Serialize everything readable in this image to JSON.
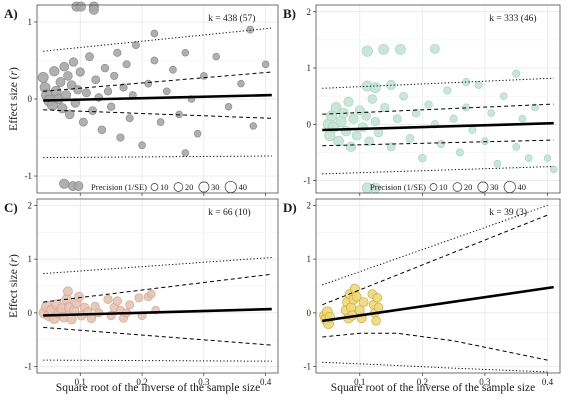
{
  "colors": {
    "A": {
      "fill": "#a7a7a7",
      "stroke": "#8b8b8b"
    },
    "B": {
      "fill": "#c2e4d7",
      "stroke": "#a9d4c4"
    },
    "C": {
      "fill": "#e6c3b3",
      "stroke": "#d2a794"
    },
    "D": {
      "fill": "#efd878",
      "stroke": "#c9ad3e"
    },
    "panel_bg": "#ffffff",
    "grid": "#e4e4e4",
    "frame": "#4d4d4d",
    "fit_line": "#000000"
  },
  "shared_xlabel": "Square root of the inverse of the sample size",
  "chart_data": [
    {
      "panel": "A)",
      "type": "scatter",
      "ylabel": "Effect size (r)",
      "k_label": "k = 438 (57)",
      "xlim": [
        0.03,
        0.42
      ],
      "ylim": [
        -1.22,
        1.22
      ],
      "x_ticks": [
        0.1,
        0.2,
        0.3,
        0.4
      ],
      "y_ticks": [
        -1,
        0,
        1
      ],
      "show_x_tick_labels": false,
      "legend": {
        "title": "Precision (1/SE)",
        "sizes": [
          10,
          20,
          30,
          40
        ]
      },
      "fit": {
        "x": [
          0.04,
          0.41
        ],
        "y": [
          -0.02,
          0.05
        ]
      },
      "ci_upper": {
        "x": [
          0.04,
          0.41
        ],
        "y": [
          0.1,
          0.35
        ]
      },
      "ci_lower": {
        "x": [
          0.04,
          0.41
        ],
        "y": [
          -0.14,
          -0.25
        ]
      },
      "pi_upper": {
        "x": [
          0.04,
          0.41
        ],
        "y": [
          0.62,
          0.92
        ]
      },
      "pi_lower": {
        "x": [
          0.04,
          0.41
        ],
        "y": [
          -0.76,
          -0.74
        ]
      },
      "points": [
        {
          "x": 0.04,
          "y": 0.28,
          "s": 30
        },
        {
          "x": 0.043,
          "y": 0.15,
          "s": 28
        },
        {
          "x": 0.046,
          "y": 0.05,
          "s": 35
        },
        {
          "x": 0.05,
          "y": -0.02,
          "s": 38
        },
        {
          "x": 0.055,
          "y": -0.08,
          "s": 30
        },
        {
          "x": 0.058,
          "y": 0.36,
          "s": 25
        },
        {
          "x": 0.061,
          "y": 0.1,
          "s": 28
        },
        {
          "x": 0.065,
          "y": 0.0,
          "s": 26
        },
        {
          "x": 0.068,
          "y": 0.22,
          "s": 22
        },
        {
          "x": 0.071,
          "y": -0.12,
          "s": 24
        },
        {
          "x": 0.074,
          "y": 0.42,
          "s": 20
        },
        {
          "x": 0.077,
          "y": 0.05,
          "s": 24
        },
        {
          "x": 0.08,
          "y": 0.3,
          "s": 20
        },
        {
          "x": 0.083,
          "y": -0.2,
          "s": 20
        },
        {
          "x": 0.086,
          "y": 0.18,
          "s": 20
        },
        {
          "x": 0.089,
          "y": 0.48,
          "s": 18
        },
        {
          "x": 0.092,
          "y": -0.05,
          "s": 20
        },
        {
          "x": 0.096,
          "y": 0.12,
          "s": 18
        },
        {
          "x": 0.1,
          "y": 0.35,
          "s": 18
        },
        {
          "x": 0.105,
          "y": -0.3,
          "s": 16
        },
        {
          "x": 0.11,
          "y": 0.08,
          "s": 16
        },
        {
          "x": 0.115,
          "y": 0.55,
          "s": 15
        },
        {
          "x": 0.12,
          "y": -0.15,
          "s": 15
        },
        {
          "x": 0.125,
          "y": 0.25,
          "s": 15
        },
        {
          "x": 0.13,
          "y": 0.02,
          "s": 14
        },
        {
          "x": 0.135,
          "y": -0.4,
          "s": 14
        },
        {
          "x": 0.14,
          "y": 0.4,
          "s": 13
        },
        {
          "x": 0.145,
          "y": 0.1,
          "s": 13
        },
        {
          "x": 0.15,
          "y": -0.1,
          "s": 13
        },
        {
          "x": 0.155,
          "y": 0.3,
          "s": 12
        },
        {
          "x": 0.16,
          "y": 0.6,
          "s": 12
        },
        {
          "x": 0.165,
          "y": -0.5,
          "s": 12
        },
        {
          "x": 0.17,
          "y": 0.15,
          "s": 12
        },
        {
          "x": 0.175,
          "y": 0.45,
          "s": 11
        },
        {
          "x": 0.18,
          "y": -0.25,
          "s": 11
        },
        {
          "x": 0.185,
          "y": 0.05,
          "s": 11
        },
        {
          "x": 0.19,
          "y": 0.7,
          "s": 11
        },
        {
          "x": 0.2,
          "y": -0.6,
          "s": 10
        },
        {
          "x": 0.21,
          "y": 0.2,
          "s": 10
        },
        {
          "x": 0.22,
          "y": 0.5,
          "s": 10
        },
        {
          "x": 0.23,
          "y": -0.3,
          "s": 10
        },
        {
          "x": 0.24,
          "y": 0.1,
          "s": 10
        },
        {
          "x": 0.25,
          "y": 0.38,
          "s": 10
        },
        {
          "x": 0.26,
          "y": -0.2,
          "s": 9
        },
        {
          "x": 0.27,
          "y": 0.6,
          "s": 9
        },
        {
          "x": 0.28,
          "y": 0.0,
          "s": 9
        },
        {
          "x": 0.29,
          "y": -0.45,
          "s": 9
        },
        {
          "x": 0.3,
          "y": 0.3,
          "s": 9
        },
        {
          "x": 0.32,
          "y": 0.55,
          "s": 9
        },
        {
          "x": 0.34,
          "y": -0.1,
          "s": 9
        },
        {
          "x": 0.36,
          "y": 0.2,
          "s": 9
        },
        {
          "x": 0.38,
          "y": -0.35,
          "s": 9
        },
        {
          "x": 0.4,
          "y": 0.45,
          "s": 9
        },
        {
          "x": 0.22,
          "y": 0.85,
          "s": 10
        },
        {
          "x": 0.27,
          "y": -0.7,
          "s": 9
        },
        {
          "x": 0.375,
          "y": 0.9,
          "s": 10
        },
        {
          "x": 0.094,
          "y": 1.2,
          "s": 24
        },
        {
          "x": 0.101,
          "y": 1.2,
          "s": 24
        },
        {
          "x": 0.122,
          "y": 1.2,
          "s": 24
        },
        {
          "x": 0.122,
          "y": 1.16,
          "s": 24
        },
        {
          "x": 0.074,
          "y": -1.1,
          "s": 24
        },
        {
          "x": 0.088,
          "y": -1.13,
          "s": 22
        },
        {
          "x": 0.097,
          "y": -1.13,
          "s": 22
        }
      ]
    },
    {
      "panel": "B)",
      "type": "scatter",
      "ylabel": "",
      "k_label": "k = 333 (46)",
      "xlim": [
        0.03,
        0.42
      ],
      "ylim": [
        -1.22,
        2.12
      ],
      "x_ticks": [
        0.1,
        0.2,
        0.3,
        0.4
      ],
      "y_ticks": [
        -1,
        0,
        1,
        2
      ],
      "show_x_tick_labels": false,
      "legend": {
        "title": "Precision (1/SE)",
        "sizes": [
          10,
          20,
          30,
          40
        ]
      },
      "fit": {
        "x": [
          0.04,
          0.41
        ],
        "y": [
          -0.1,
          0.02
        ]
      },
      "ci_upper": {
        "x": [
          0.04,
          0.41
        ],
        "y": [
          0.18,
          0.36
        ]
      },
      "ci_lower": {
        "x": [
          0.04,
          0.41
        ],
        "y": [
          -0.38,
          -0.28
        ]
      },
      "pi_upper": {
        "x": [
          0.04,
          0.41
        ],
        "y": [
          0.64,
          0.82
        ]
      },
      "pi_lower": {
        "x": [
          0.04,
          0.41
        ],
        "y": [
          -0.88,
          -0.75
        ]
      },
      "points": [
        {
          "x": 0.05,
          "y": 0.0,
          "s": 35
        },
        {
          "x": 0.052,
          "y": -0.2,
          "s": 32
        },
        {
          "x": 0.055,
          "y": 0.15,
          "s": 30
        },
        {
          "x": 0.058,
          "y": -0.05,
          "s": 33
        },
        {
          "x": 0.062,
          "y": 0.3,
          "s": 28
        },
        {
          "x": 0.066,
          "y": -0.3,
          "s": 28
        },
        {
          "x": 0.07,
          "y": 0.05,
          "s": 30
        },
        {
          "x": 0.074,
          "y": 0.2,
          "s": 26
        },
        {
          "x": 0.078,
          "y": -0.12,
          "s": 26
        },
        {
          "x": 0.082,
          "y": 0.4,
          "s": 24
        },
        {
          "x": 0.086,
          "y": -0.4,
          "s": 24
        },
        {
          "x": 0.09,
          "y": 0.1,
          "s": 24
        },
        {
          "x": 0.095,
          "y": -0.2,
          "s": 22
        },
        {
          "x": 0.1,
          "y": 0.25,
          "s": 22
        },
        {
          "x": 0.105,
          "y": -0.05,
          "s": 22
        },
        {
          "x": 0.11,
          "y": 0.15,
          "s": 20
        },
        {
          "x": 0.115,
          "y": -0.3,
          "s": 20
        },
        {
          "x": 0.12,
          "y": 0.45,
          "s": 20
        },
        {
          "x": 0.125,
          "y": 0.05,
          "s": 18
        },
        {
          "x": 0.13,
          "y": -0.15,
          "s": 18
        },
        {
          "x": 0.14,
          "y": 0.3,
          "s": 18
        },
        {
          "x": 0.15,
          "y": -0.4,
          "s": 16
        },
        {
          "x": 0.16,
          "y": 0.1,
          "s": 16
        },
        {
          "x": 0.17,
          "y": 0.5,
          "s": 15
        },
        {
          "x": 0.18,
          "y": -0.25,
          "s": 15
        },
        {
          "x": 0.19,
          "y": 0.2,
          "s": 14
        },
        {
          "x": 0.2,
          "y": -0.6,
          "s": 14
        },
        {
          "x": 0.21,
          "y": 0.35,
          "s": 13
        },
        {
          "x": 0.22,
          "y": 0.0,
          "s": 13
        },
        {
          "x": 0.23,
          "y": -0.35,
          "s": 12
        },
        {
          "x": 0.24,
          "y": 0.6,
          "s": 12
        },
        {
          "x": 0.25,
          "y": 0.1,
          "s": 12
        },
        {
          "x": 0.26,
          "y": -0.5,
          "s": 11
        },
        {
          "x": 0.27,
          "y": 0.3,
          "s": 11
        },
        {
          "x": 0.28,
          "y": -0.1,
          "s": 11
        },
        {
          "x": 0.29,
          "y": 0.7,
          "s": 11
        },
        {
          "x": 0.3,
          "y": -0.3,
          "s": 10
        },
        {
          "x": 0.31,
          "y": 0.2,
          "s": 10
        },
        {
          "x": 0.32,
          "y": -0.7,
          "s": 10
        },
        {
          "x": 0.33,
          "y": 0.5,
          "s": 10
        },
        {
          "x": 0.35,
          "y": -0.4,
          "s": 10
        },
        {
          "x": 0.36,
          "y": 0.1,
          "s": 10
        },
        {
          "x": 0.37,
          "y": -0.6,
          "s": 10
        },
        {
          "x": 0.38,
          "y": 0.3,
          "s": 10
        },
        {
          "x": 0.4,
          "y": -0.6,
          "s": 9
        },
        {
          "x": 0.41,
          "y": -0.8,
          "s": 9
        },
        {
          "x": 0.35,
          "y": 0.9,
          "s": 12
        },
        {
          "x": 0.27,
          "y": 0.75,
          "s": 12
        },
        {
          "x": 0.112,
          "y": 1.3,
          "s": 32
        },
        {
          "x": 0.138,
          "y": 1.33,
          "s": 28
        },
        {
          "x": 0.165,
          "y": 1.33,
          "s": 28
        },
        {
          "x": 0.22,
          "y": 1.34,
          "s": 22
        },
        {
          "x": 0.112,
          "y": 0.68,
          "s": 30
        },
        {
          "x": 0.125,
          "y": 0.65,
          "s": 28
        },
        {
          "x": 0.15,
          "y": 0.7,
          "s": 24
        },
        {
          "x": 0.112,
          "y": -1.13,
          "s": 32
        },
        {
          "x": 0.125,
          "y": -1.13,
          "s": 28
        }
      ]
    },
    {
      "panel": "C)",
      "type": "scatter",
      "ylabel": "Effect size (r)",
      "k_label": "k = 66 (10)",
      "xlim": [
        0.03,
        0.42
      ],
      "ylim": [
        -1.12,
        2.12
      ],
      "x_ticks": [
        0.1,
        0.2,
        0.3,
        0.4
      ],
      "y_ticks": [
        -1,
        0,
        1,
        2
      ],
      "show_x_tick_labels": true,
      "fit": {
        "x": [
          0.04,
          0.41
        ],
        "y": [
          -0.05,
          0.07
        ]
      },
      "ci_upper": {
        "x": [
          0.04,
          0.41
        ],
        "y": [
          0.2,
          0.72
        ]
      },
      "ci_lower": {
        "x": [
          0.04,
          0.41
        ],
        "y": [
          -0.27,
          -0.6
        ]
      },
      "pi_upper": {
        "x": [
          0.04,
          0.41
        ],
        "y": [
          0.73,
          1.03
        ]
      },
      "pi_lower": {
        "x": [
          0.04,
          0.41
        ],
        "y": [
          -0.88,
          -0.9
        ]
      },
      "points": [
        {
          "x": 0.042,
          "y": 0.0,
          "s": 34
        },
        {
          "x": 0.046,
          "y": 0.12,
          "s": 32
        },
        {
          "x": 0.05,
          "y": -0.05,
          "s": 32
        },
        {
          "x": 0.054,
          "y": 0.05,
          "s": 30
        },
        {
          "x": 0.058,
          "y": -0.1,
          "s": 30
        },
        {
          "x": 0.062,
          "y": 0.15,
          "s": 28
        },
        {
          "x": 0.066,
          "y": 0.0,
          "s": 30
        },
        {
          "x": 0.07,
          "y": 0.08,
          "s": 28
        },
        {
          "x": 0.074,
          "y": -0.08,
          "s": 28
        },
        {
          "x": 0.078,
          "y": 0.25,
          "s": 26
        },
        {
          "x": 0.082,
          "y": 0.1,
          "s": 26
        },
        {
          "x": 0.086,
          "y": -0.12,
          "s": 24
        },
        {
          "x": 0.09,
          "y": 0.05,
          "s": 24
        },
        {
          "x": 0.094,
          "y": 0.18,
          "s": 24
        },
        {
          "x": 0.098,
          "y": 0.3,
          "s": 22
        },
        {
          "x": 0.102,
          "y": -0.05,
          "s": 22
        },
        {
          "x": 0.107,
          "y": 0.1,
          "s": 20
        },
        {
          "x": 0.112,
          "y": 0.02,
          "s": 20
        },
        {
          "x": 0.118,
          "y": -0.1,
          "s": 20
        },
        {
          "x": 0.124,
          "y": 0.12,
          "s": 18
        },
        {
          "x": 0.13,
          "y": 0.0,
          "s": 18
        },
        {
          "x": 0.145,
          "y": 0.25,
          "s": 18
        },
        {
          "x": 0.15,
          "y": -0.05,
          "s": 18
        },
        {
          "x": 0.155,
          "y": 0.1,
          "s": 18
        },
        {
          "x": 0.16,
          "y": 0.22,
          "s": 18
        },
        {
          "x": 0.165,
          "y": 0.05,
          "s": 16
        },
        {
          "x": 0.17,
          "y": -0.1,
          "s": 16
        },
        {
          "x": 0.175,
          "y": 0.0,
          "s": 16
        },
        {
          "x": 0.18,
          "y": 0.15,
          "s": 16
        },
        {
          "x": 0.195,
          "y": 0.28,
          "s": 16
        },
        {
          "x": 0.2,
          "y": -0.05,
          "s": 16
        },
        {
          "x": 0.21,
          "y": 0.3,
          "s": 16
        },
        {
          "x": 0.215,
          "y": 0.35,
          "s": 14
        },
        {
          "x": 0.222,
          "y": 0.05,
          "s": 14
        },
        {
          "x": 0.08,
          "y": 0.4,
          "s": 22
        }
      ]
    },
    {
      "panel": "D)",
      "type": "scatter",
      "ylabel": "",
      "k_label": "k = 39 (3)",
      "xlim": [
        0.03,
        0.42
      ],
      "ylim": [
        -1.12,
        2.12
      ],
      "x_ticks": [
        0.1,
        0.2,
        0.3,
        0.4
      ],
      "y_ticks": [
        -1,
        0,
        1,
        2
      ],
      "show_x_tick_labels": true,
      "fit": {
        "x": [
          0.04,
          0.41
        ],
        "y": [
          -0.15,
          0.48
        ]
      },
      "ci_upper": {
        "x": [
          0.04,
          0.4
        ],
        "y": [
          0.15,
          1.82
        ]
      },
      "ci_lower": {
        "x": [
          0.04,
          0.1,
          0.16,
          0.25,
          0.4
        ],
        "y": [
          -0.45,
          -0.38,
          -0.38,
          -0.52,
          -0.88
        ]
      },
      "pi_upper": {
        "x": [
          0.04,
          0.4
        ],
        "y": [
          0.52,
          2.0
        ]
      },
      "pi_lower": {
        "x": [
          0.04,
          0.14,
          0.25,
          0.4
        ],
        "y": [
          -0.92,
          -0.97,
          -1.03,
          -1.1
        ]
      },
      "points": [
        {
          "x": 0.044,
          "y": -0.05,
          "s": 30
        },
        {
          "x": 0.046,
          "y": -0.12,
          "s": 30
        },
        {
          "x": 0.048,
          "y": 0.02,
          "s": 28
        },
        {
          "x": 0.05,
          "y": -0.2,
          "s": 28
        },
        {
          "x": 0.052,
          "y": -0.08,
          "s": 26
        },
        {
          "x": 0.078,
          "y": 0.05,
          "s": 26
        },
        {
          "x": 0.08,
          "y": 0.2,
          "s": 26
        },
        {
          "x": 0.082,
          "y": -0.1,
          "s": 26
        },
        {
          "x": 0.084,
          "y": 0.35,
          "s": 24
        },
        {
          "x": 0.086,
          "y": 0.1,
          "s": 24
        },
        {
          "x": 0.088,
          "y": -0.05,
          "s": 24
        },
        {
          "x": 0.09,
          "y": 0.25,
          "s": 24
        },
        {
          "x": 0.092,
          "y": 0.45,
          "s": 22
        },
        {
          "x": 0.095,
          "y": 0.3,
          "s": 22
        },
        {
          "x": 0.1,
          "y": 0.05,
          "s": 22
        },
        {
          "x": 0.103,
          "y": -0.1,
          "s": 22
        },
        {
          "x": 0.106,
          "y": 0.2,
          "s": 22
        },
        {
          "x": 0.12,
          "y": 0.35,
          "s": 20
        },
        {
          "x": 0.122,
          "y": 0.15,
          "s": 20
        },
        {
          "x": 0.124,
          "y": 0.0,
          "s": 20
        },
        {
          "x": 0.126,
          "y": -0.15,
          "s": 20
        },
        {
          "x": 0.128,
          "y": 0.28,
          "s": 20
        },
        {
          "x": 0.13,
          "y": 0.1,
          "s": 20
        }
      ]
    }
  ]
}
